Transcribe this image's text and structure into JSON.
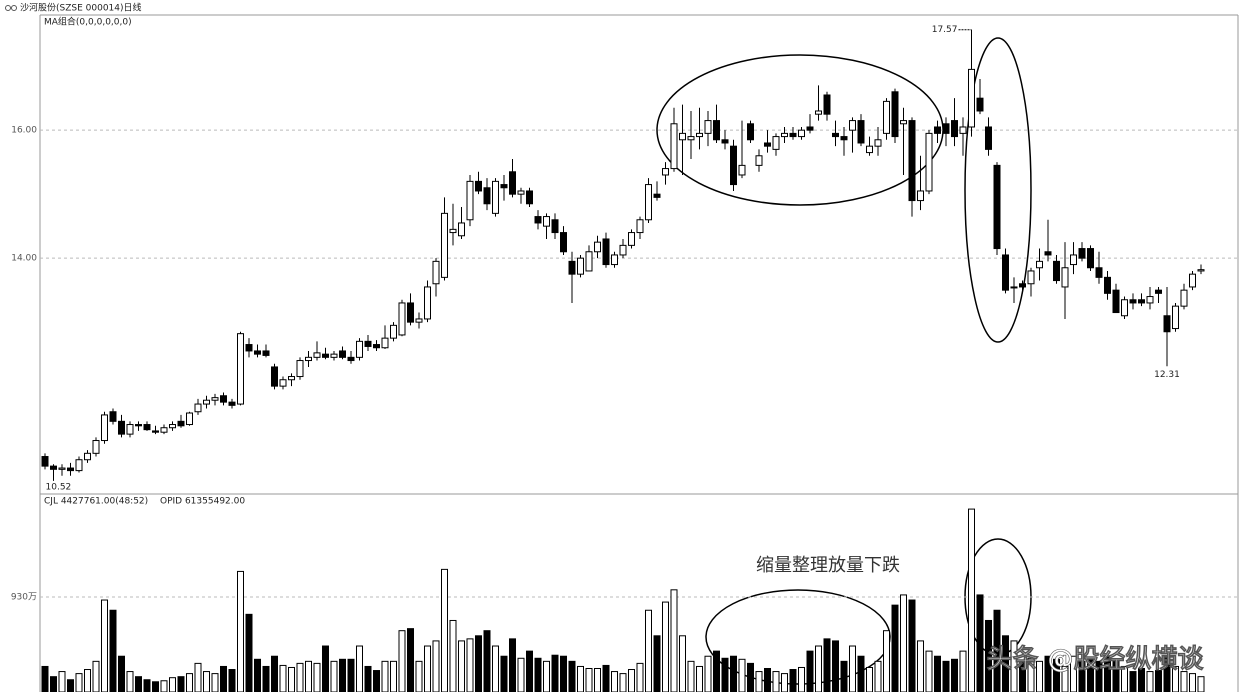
{
  "watermark": "头条 @股经纵横谈",
  "chart_data": [
    {
      "type": "candlestick",
      "title": "沙河股份(SZSE 000014)日线",
      "subtitle": "MA组合(0,0,0,0,0,0)",
      "open": [
        10.9,
        10.75,
        10.7,
        10.72,
        10.68,
        10.85,
        10.95,
        11.15,
        11.6,
        11.45,
        11.25,
        11.4,
        11.4,
        11.3,
        11.28,
        11.35,
        11.45,
        11.4,
        11.6,
        11.72,
        11.78,
        11.85,
        11.75,
        11.72,
        12.65,
        12.55,
        12.55,
        12.3,
        12.0,
        12.1,
        12.15,
        12.4,
        12.45,
        12.5,
        12.45,
        12.55,
        12.45,
        12.45,
        12.7,
        12.65,
        12.6,
        12.75,
        12.8,
        13.3,
        13.0,
        13.05,
        13.6,
        13.7,
        14.4,
        14.35,
        14.6,
        15.2,
        15.1,
        14.7,
        15.15,
        15.35,
        15.0,
        15.05,
        14.65,
        14.5,
        14.6,
        14.4,
        13.95,
        13.75,
        13.8,
        14.1,
        14.3,
        13.9,
        14.05,
        14.2,
        14.4,
        14.6,
        15.0,
        15.3,
        15.4,
        15.85,
        15.85,
        15.9,
        15.95,
        16.15,
        15.85,
        15.75,
        15.3,
        16.1,
        15.45,
        15.8,
        15.7,
        15.9,
        15.95,
        15.9,
        16.05,
        16.25,
        16.55,
        15.95,
        15.9,
        16.0,
        16.15,
        15.65,
        15.75,
        15.95,
        16.6,
        16.1,
        16.15,
        14.9,
        15.05,
        16.05,
        16.1,
        16.15,
        15.95,
        16.05,
        16.5,
        16.05,
        15.45,
        14.05,
        13.55,
        13.6,
        13.6,
        13.85,
        14.1,
        13.95,
        13.55,
        13.9,
        14.15,
        14.15,
        13.85,
        13.7,
        13.5,
        13.1,
        13.35,
        13.35,
        13.3,
        13.5,
        13.1,
        12.9,
        13.25,
        13.55,
        13.8
      ],
      "high": [
        10.95,
        10.78,
        10.78,
        10.8,
        10.9,
        11.0,
        11.2,
        11.6,
        11.65,
        11.55,
        11.45,
        11.45,
        11.45,
        11.38,
        11.4,
        11.45,
        11.55,
        11.6,
        11.8,
        11.85,
        11.88,
        11.9,
        11.8,
        12.85,
        12.75,
        12.65,
        12.65,
        12.35,
        12.15,
        12.2,
        12.45,
        12.55,
        12.7,
        12.6,
        12.55,
        12.62,
        12.55,
        12.75,
        12.8,
        12.72,
        12.95,
        13.0,
        13.35,
        13.45,
        13.15,
        13.65,
        14.0,
        14.95,
        14.85,
        14.8,
        15.3,
        15.35,
        15.25,
        15.25,
        15.3,
        15.55,
        15.1,
        15.1,
        14.75,
        14.7,
        14.7,
        14.5,
        14.1,
        14.05,
        14.2,
        14.35,
        14.4,
        14.1,
        14.3,
        14.45,
        14.65,
        15.25,
        15.2,
        15.5,
        16.35,
        16.4,
        16.3,
        16.35,
        16.3,
        16.4,
        16.0,
        15.85,
        16.15,
        16.15,
        15.7,
        16.0,
        15.95,
        16.05,
        16.05,
        16.05,
        16.25,
        16.7,
        16.6,
        16.15,
        16.05,
        16.2,
        16.25,
        15.9,
        16.05,
        16.5,
        16.65,
        16.35,
        16.2,
        15.6,
        16.0,
        16.15,
        16.2,
        16.5,
        16.2,
        17.57,
        16.8,
        16.2,
        15.5,
        14.15,
        13.7,
        13.65,
        13.85,
        14.15,
        14.6,
        14.05,
        14.25,
        14.25,
        14.25,
        14.2,
        14.1,
        13.8,
        13.6,
        13.4,
        13.45,
        13.45,
        13.55,
        13.55,
        13.55,
        13.3,
        13.6,
        13.8,
        13.9
      ],
      "low": [
        10.7,
        10.52,
        10.6,
        10.6,
        10.65,
        10.8,
        10.9,
        11.1,
        11.4,
        11.2,
        11.2,
        11.3,
        11.3,
        11.25,
        11.25,
        11.3,
        11.35,
        11.38,
        11.55,
        11.65,
        11.7,
        11.7,
        11.65,
        11.7,
        12.45,
        12.45,
        12.45,
        11.95,
        11.95,
        12.0,
        12.1,
        12.3,
        12.4,
        12.42,
        12.4,
        12.42,
        12.35,
        12.4,
        12.55,
        12.55,
        12.58,
        12.7,
        12.78,
        12.95,
        12.9,
        13.0,
        13.4,
        13.65,
        14.2,
        14.3,
        14.5,
        15.0,
        14.75,
        14.65,
        14.9,
        14.95,
        14.85,
        14.8,
        14.45,
        14.3,
        14.3,
        14.05,
        13.3,
        13.7,
        13.8,
        14.0,
        13.85,
        13.85,
        14.0,
        14.15,
        14.3,
        14.55,
        14.9,
        15.15,
        15.35,
        15.3,
        15.55,
        15.7,
        15.75,
        15.8,
        15.7,
        15.05,
        15.25,
        15.8,
        15.35,
        15.65,
        15.6,
        15.8,
        15.85,
        15.85,
        15.95,
        16.15,
        16.15,
        15.75,
        15.6,
        15.65,
        15.75,
        15.6,
        15.6,
        15.85,
        15.8,
        15.3,
        14.65,
        14.75,
        15.0,
        15.8,
        15.75,
        15.75,
        15.6,
        15.9,
        16.25,
        15.6,
        14.05,
        13.45,
        13.3,
        13.45,
        13.4,
        13.65,
        13.95,
        13.6,
        13.05,
        13.75,
        13.95,
        13.8,
        13.6,
        13.35,
        13.15,
        13.05,
        13.2,
        13.25,
        13.2,
        13.3,
        12.31,
        12.85,
        13.2,
        13.5,
        13.75
      ],
      "close": [
        10.75,
        10.7,
        10.72,
        10.68,
        10.85,
        10.95,
        11.15,
        11.55,
        11.45,
        11.25,
        11.4,
        11.38,
        11.32,
        11.28,
        11.35,
        11.4,
        11.38,
        11.58,
        11.72,
        11.78,
        11.82,
        11.75,
        11.7,
        12.82,
        12.55,
        12.5,
        12.48,
        12.0,
        12.1,
        12.15,
        12.4,
        12.45,
        12.52,
        12.45,
        12.5,
        12.45,
        12.4,
        12.7,
        12.62,
        12.6,
        12.75,
        12.95,
        13.3,
        13.0,
        13.05,
        13.55,
        13.95,
        14.7,
        14.45,
        14.55,
        15.2,
        15.05,
        14.85,
        15.2,
        15.1,
        15.0,
        15.05,
        14.85,
        14.55,
        14.65,
        14.4,
        14.1,
        13.75,
        14.0,
        14.1,
        14.25,
        13.9,
        14.05,
        14.2,
        14.4,
        14.6,
        15.15,
        14.95,
        15.4,
        16.1,
        15.95,
        15.9,
        15.95,
        16.15,
        15.85,
        15.8,
        15.15,
        15.45,
        15.85,
        15.6,
        15.75,
        15.9,
        15.95,
        15.9,
        16.0,
        16.0,
        16.3,
        16.25,
        15.9,
        15.85,
        16.15,
        15.8,
        15.75,
        15.85,
        16.45,
        15.9,
        16.15,
        14.9,
        15.05,
        15.95,
        15.95,
        15.95,
        15.9,
        16.05,
        16.95,
        16.3,
        15.7,
        14.15,
        13.5,
        13.55,
        13.55,
        13.8,
        13.95,
        14.05,
        13.65,
        13.85,
        14.05,
        14.0,
        13.85,
        13.7,
        13.45,
        13.15,
        13.35,
        13.3,
        13.3,
        13.4,
        13.45,
        12.85,
        13.25,
        13.5,
        13.75,
        13.82
      ],
      "ylim": [
        10.33,
        17.8
      ],
      "yticks": [
        {
          "value": 16,
          "label": "16.00"
        },
        {
          "value": 14,
          "label": "14.00"
        }
      ],
      "grid": true,
      "up_color": "#ffffff",
      "down_color": "#000000"
    },
    {
      "type": "bar",
      "title": "CJL 4427761.00(48:52)",
      "subtitle": "OPID 61355492.00",
      "annotation": "缩量整理放量下跌",
      "values": [
        250,
        150,
        200,
        120,
        180,
        220,
        300,
        900,
        800,
        350,
        200,
        150,
        120,
        100,
        110,
        140,
        150,
        180,
        280,
        200,
        180,
        250,
        220,
        1180,
        760,
        320,
        250,
        350,
        260,
        240,
        280,
        300,
        280,
        450,
        300,
        320,
        320,
        450,
        250,
        210,
        300,
        300,
        600,
        620,
        300,
        450,
        500,
        1200,
        700,
        500,
        520,
        550,
        600,
        450,
        350,
        520,
        330,
        400,
        330,
        300,
        360,
        350,
        300,
        250,
        230,
        230,
        260,
        200,
        180,
        220,
        280,
        800,
        550,
        880,
        1000,
        550,
        300,
        250,
        350,
        400,
        330,
        350,
        320,
        280,
        200,
        230,
        200,
        180,
        220,
        240,
        400,
        450,
        520,
        500,
        300,
        450,
        350,
        240,
        300,
        600,
        850,
        950,
        900,
        500,
        400,
        350,
        300,
        320,
        400,
        1790,
        950,
        700,
        800,
        550,
        500,
        300,
        330,
        300,
        350,
        320,
        250,
        350,
        300,
        330,
        300,
        350,
        300,
        250,
        200,
        230,
        200,
        210,
        350,
        250,
        200,
        180,
        150
      ],
      "ylim": [
        0,
        1830
      ],
      "yticks": [
        {
          "value": 930,
          "label": "930万"
        }
      ],
      "grid": true
    }
  ]
}
